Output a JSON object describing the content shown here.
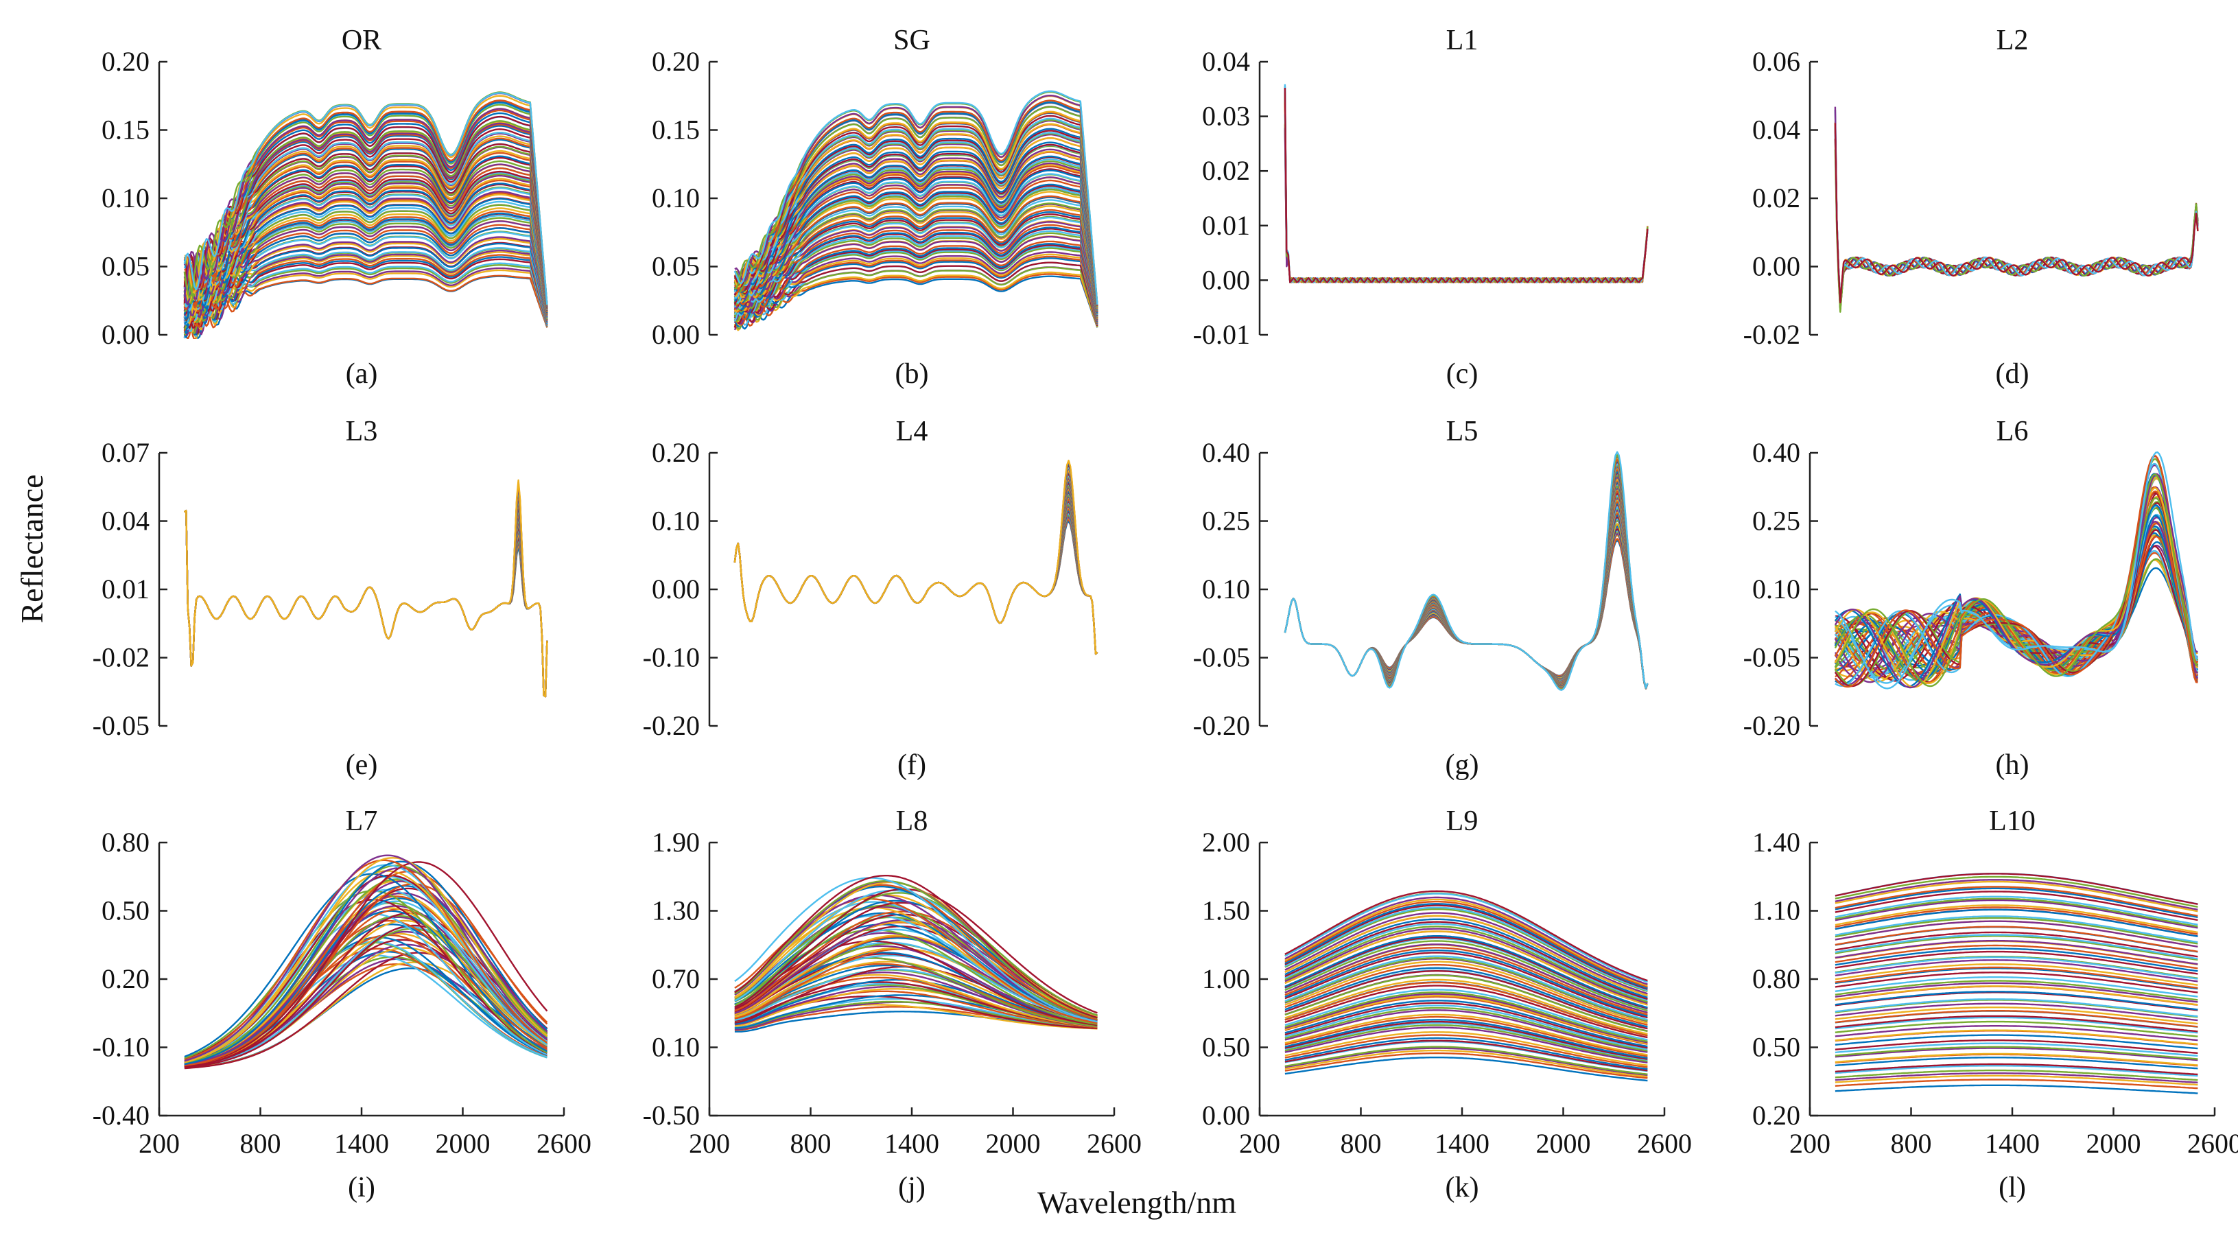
{
  "figure": {
    "ylabel": "Reflectance",
    "xlabel": "Wavelength/nm"
  },
  "palette": [
    "#0072BD",
    "#D95319",
    "#EDB120",
    "#7E2F8E",
    "#77AC30",
    "#4DBEEE",
    "#A2142F"
  ],
  "chart_data": [
    {
      "type": "line",
      "title": "OR",
      "caption": "(a)",
      "profile": "raw",
      "ylim": [
        0,
        0.2
      ],
      "yticks": [
        "0.00",
        "0.05",
        "0.10",
        "0.15",
        "0.20"
      ],
      "xlim": [
        200,
        2600
      ],
      "x_start": 350,
      "x_end": 2500,
      "series_count": 90,
      "series_range": [
        0.04,
        0.17
      ],
      "spread_lo": 0.1,
      "noise": 0.018,
      "show_xticks": false
    },
    {
      "type": "line",
      "title": "SG",
      "caption": "(b)",
      "profile": "raw",
      "ylim": [
        0,
        0.2
      ],
      "yticks": [
        "0.00",
        "0.05",
        "0.10",
        "0.15",
        "0.20"
      ],
      "xlim": [
        200,
        2600
      ],
      "x_start": 350,
      "x_end": 2500,
      "series_count": 90,
      "series_range": [
        0.04,
        0.17
      ],
      "spread_lo": 0.1,
      "noise": 0.008,
      "show_xticks": false
    },
    {
      "type": "line",
      "title": "L1",
      "caption": "(c)",
      "profile": "d1",
      "ylim": [
        -0.01,
        0.04
      ],
      "yticks": [
        "-0.01",
        "0.00",
        "0.01",
        "0.02",
        "0.03",
        "0.04"
      ],
      "xlim": [
        200,
        2600
      ],
      "x_start": 350,
      "x_end": 2500,
      "series_count": 14,
      "series_range": [
        0.8,
        1.1
      ],
      "spread_lo": 0.5,
      "noise": 0,
      "show_xticks": false
    },
    {
      "type": "line",
      "title": "L2",
      "caption": "(d)",
      "profile": "d2",
      "ylim": [
        -0.02,
        0.06
      ],
      "yticks": [
        "-0.02",
        "0.00",
        "0.02",
        "0.04",
        "0.06"
      ],
      "xlim": [
        200,
        2600
      ],
      "x_start": 350,
      "x_end": 2500,
      "series_count": 14,
      "series_range": [
        0.8,
        1.1
      ],
      "spread_lo": 0.5,
      "noise": 0,
      "show_xticks": false
    },
    {
      "type": "line",
      "title": "L3",
      "caption": "(e)",
      "profile": "l3",
      "ylim": [
        -0.05,
        0.07
      ],
      "yticks": [
        "-0.05",
        "-0.02",
        "0.01",
        "0.04",
        "0.07"
      ],
      "xlim": [
        200,
        2600
      ],
      "x_start": 350,
      "x_end": 2500,
      "series_count": 45,
      "series_range": [
        0.6,
        1.2
      ],
      "spread_lo": 0.5,
      "noise": 0,
      "show_xticks": false
    },
    {
      "type": "line",
      "title": "L4",
      "caption": "(f)",
      "profile": "l4",
      "ylim": [
        -0.2,
        0.2
      ],
      "yticks": [
        "-0.20",
        "-0.10",
        "0.00",
        "0.10",
        "0.20"
      ],
      "xlim": [
        200,
        2600
      ],
      "x_start": 350,
      "x_end": 2500,
      "series_count": 45,
      "series_range": [
        0.6,
        1.2
      ],
      "spread_lo": 0.5,
      "noise": 0,
      "show_xticks": false
    },
    {
      "type": "line",
      "title": "L5",
      "caption": "(g)",
      "profile": "l5",
      "ylim": [
        -0.2,
        0.4
      ],
      "yticks": [
        "-0.20",
        "-0.05",
        "0.10",
        "0.25",
        "0.40"
      ],
      "xlim": [
        200,
        2600
      ],
      "x_start": 350,
      "x_end": 2500,
      "series_count": 55,
      "series_range": [
        0.65,
        1.2
      ],
      "spread_lo": 0.5,
      "noise": 0,
      "show_xticks": false
    },
    {
      "type": "line",
      "title": "L6",
      "caption": "(h)",
      "profile": "l6",
      "ylim": [
        -0.2,
        0.4
      ],
      "yticks": [
        "-0.20",
        "-0.05",
        "0.10",
        "0.25",
        "0.40"
      ],
      "xlim": [
        200,
        2600
      ],
      "x_start": 350,
      "x_end": 2500,
      "series_count": 55,
      "series_range": [
        0.55,
        1.25
      ],
      "spread_lo": 0.5,
      "noise": 0,
      "show_xticks": false
    },
    {
      "type": "line",
      "title": "L7",
      "caption": "(i)",
      "profile": "l7",
      "ylim": [
        -0.4,
        0.8
      ],
      "yticks": [
        "-0.40",
        "-0.10",
        "0.20",
        "0.50",
        "0.80"
      ],
      "xlim": [
        200,
        2600
      ],
      "xticks": [
        200,
        800,
        1400,
        2000,
        2600
      ],
      "x_start": 350,
      "x_end": 2500,
      "series_count": 60,
      "series_range": [
        0.25,
        0.74
      ],
      "spread_lo": 0.2,
      "noise": 0,
      "show_xticks": true
    },
    {
      "type": "line",
      "title": "L8",
      "caption": "(j)",
      "profile": "l8",
      "ylim": [
        -0.5,
        1.9
      ],
      "yticks": [
        "-0.50",
        "0.10",
        "0.70",
        "1.30",
        "1.90"
      ],
      "xlim": [
        200,
        2600
      ],
      "xticks": [
        200,
        800,
        1400,
        2000,
        2600
      ],
      "x_start": 350,
      "x_end": 2500,
      "series_count": 70,
      "series_range": [
        0.42,
        1.6
      ],
      "spread_lo": 0.1,
      "noise": 0,
      "show_xticks": true
    },
    {
      "type": "line",
      "title": "L9",
      "caption": "(k)",
      "profile": "l9",
      "ylim": [
        0,
        2.0
      ],
      "yticks": [
        "0.00",
        "0.50",
        "1.00",
        "1.50",
        "2.00"
      ],
      "xlim": [
        200,
        2600
      ],
      "xticks": [
        200,
        800,
        1400,
        2000,
        2600
      ],
      "x_start": 350,
      "x_end": 2500,
      "series_count": 70,
      "series_range": [
        0.42,
        1.65
      ],
      "spread_lo": 0.1,
      "noise": 0,
      "show_xticks": true
    },
    {
      "type": "line",
      "title": "L10",
      "caption": "(l)",
      "profile": "l10",
      "ylim": [
        0.2,
        1.4
      ],
      "yticks": [
        "0.20",
        "0.50",
        "0.80",
        "1.10",
        "1.40"
      ],
      "xlim": [
        200,
        2600
      ],
      "xticks": [
        200,
        800,
        1400,
        2000,
        2600
      ],
      "x_start": 350,
      "x_end": 2500,
      "series_count": 70,
      "series_range": [
        0.33,
        1.27
      ],
      "spread_lo": 0.1,
      "noise": 0,
      "show_xticks": true
    }
  ]
}
